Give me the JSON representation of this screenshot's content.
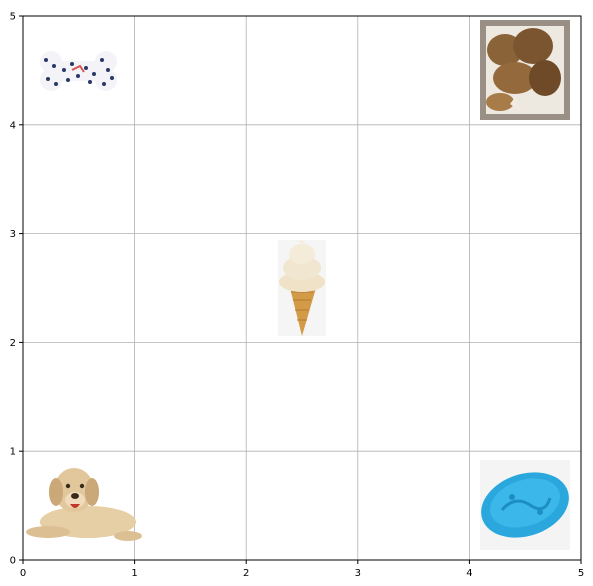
{
  "grid": {
    "x_min": 0,
    "x_max": 5,
    "y_min": 0,
    "y_max": 5,
    "x_ticks": [
      "0",
      "1",
      "2",
      "3",
      "4",
      "5"
    ],
    "y_ticks": [
      "0",
      "1",
      "2",
      "3",
      "4",
      "5"
    ],
    "grid_on": true,
    "grid_color": "#b0b0b0"
  },
  "items": [
    {
      "name": "dog-icon",
      "cell": [
        0,
        0
      ]
    },
    {
      "name": "frisbee-icon",
      "cell": [
        4,
        0
      ]
    },
    {
      "name": "ice-cream-icon",
      "cell": [
        2,
        2
      ]
    },
    {
      "name": "bone-toy-icon",
      "cell": [
        0,
        4
      ]
    },
    {
      "name": "fried-chicken-icon",
      "cell": [
        4,
        4
      ]
    }
  ],
  "colors": {
    "frisbee": "#2aa7dc",
    "bone_dots": "#2a3768",
    "ice_cream": "#f1e6cf",
    "cone": "#d39a48",
    "dog_fur": "#e2c79c",
    "chicken": "#8a6438"
  }
}
